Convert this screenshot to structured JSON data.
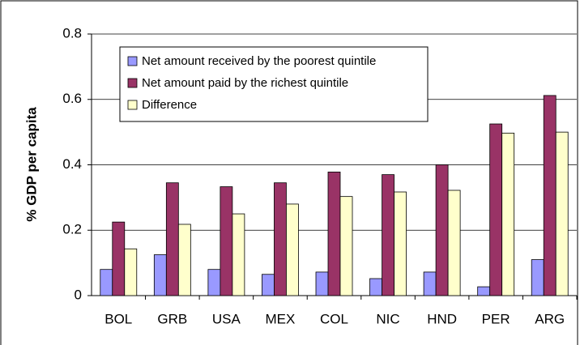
{
  "chart_data": {
    "type": "bar",
    "y_label": "% GDP per capita",
    "categories": [
      "BOL",
      "GRB",
      "USA",
      "MEX",
      "COL",
      "NIC",
      "HND",
      "PER",
      "ARG"
    ],
    "series": [
      {
        "name": "Net amount received by the poorest quintile",
        "color": "#9999ff",
        "values": [
          0.08,
          0.125,
          0.08,
          0.065,
          0.072,
          0.052,
          0.072,
          0.027,
          0.11
        ]
      },
      {
        "name": "Net amount paid by the richest quintile",
        "color": "#993366",
        "values": [
          0.225,
          0.345,
          0.333,
          0.345,
          0.378,
          0.37,
          0.4,
          0.525,
          0.612
        ]
      },
      {
        "name": "Difference",
        "color": "#ffffcc",
        "values": [
          0.143,
          0.218,
          0.25,
          0.28,
          0.303,
          0.317,
          0.322,
          0.497,
          0.5
        ]
      }
    ],
    "ylim": [
      0,
      0.8
    ],
    "yticks": [
      0,
      0.2,
      0.4,
      0.6,
      0.8
    ],
    "grid": true,
    "legend": "top-left"
  }
}
